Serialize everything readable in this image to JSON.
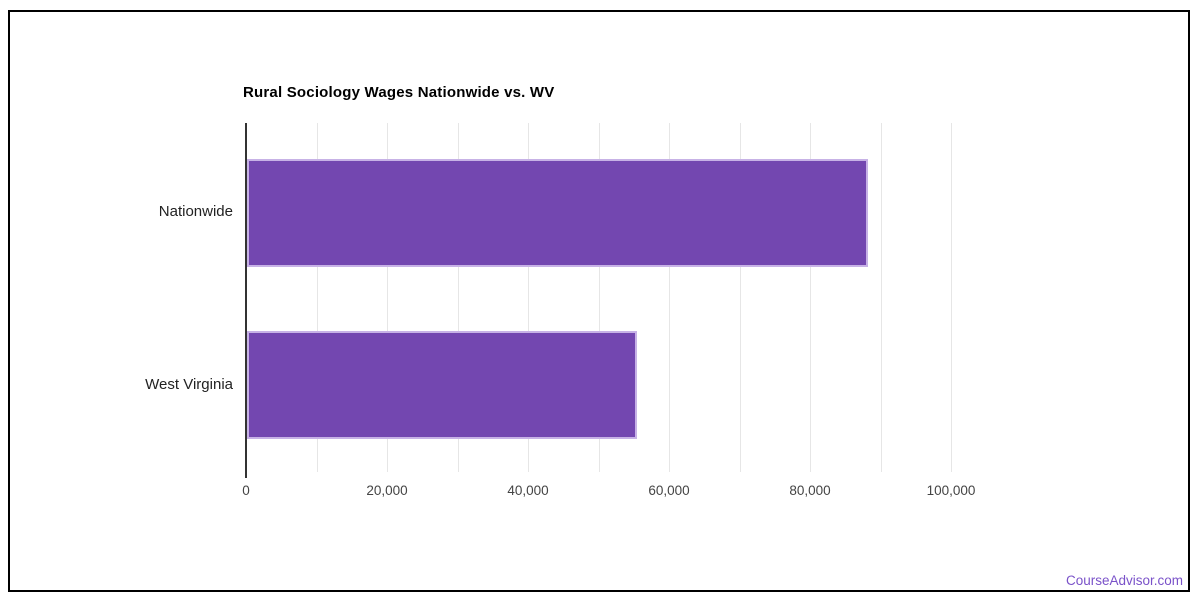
{
  "chart_data": {
    "type": "bar",
    "orientation": "horizontal",
    "title": "Rural Sociology Wages Nationwide vs. WV",
    "categories": [
      "Nationwide",
      "West Virginia"
    ],
    "values": [
      88100,
      55300
    ],
    "xlabel": "",
    "ylabel": "",
    "xlim": [
      0,
      100000
    ],
    "gridline_interval": 10000,
    "x_tick_labels": [
      "0",
      "20,000",
      "40,000",
      "60,000",
      "80,000",
      "100,000"
    ],
    "legend": "none",
    "grid": "vertical-only",
    "bar_color": "#7347b0",
    "bar_border_color": "#c7b2e6",
    "gridline_color": "#e6e6e6",
    "axis_color": "#333333",
    "title_color": "#000000",
    "label_color": "#222222",
    "tick_label_color": "#444444"
  },
  "footer": {
    "watermark": "CourseAdvisor.com",
    "watermark_color": "#7a52c9"
  }
}
